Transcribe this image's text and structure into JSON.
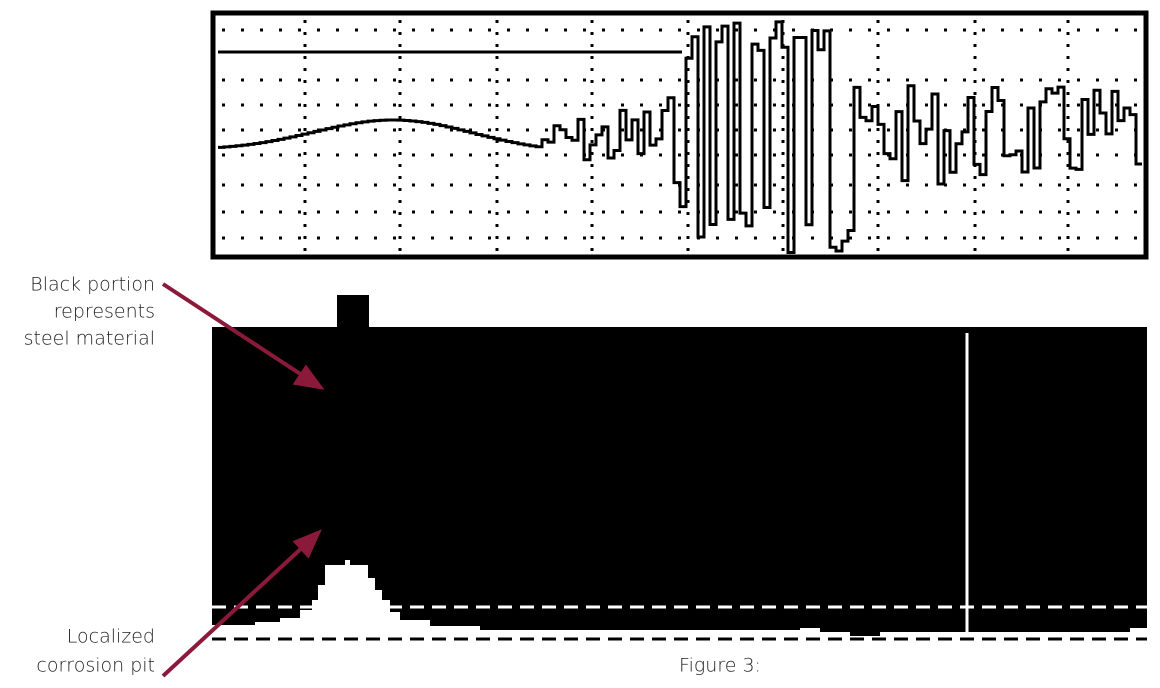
{
  "annotations": [
    {
      "lines": [
        "Black portion",
        "represents",
        "steel material"
      ]
    },
    {
      "lines": [
        "Localized",
        "corrosion pit"
      ]
    }
  ],
  "caption": "Figure 3:"
}
